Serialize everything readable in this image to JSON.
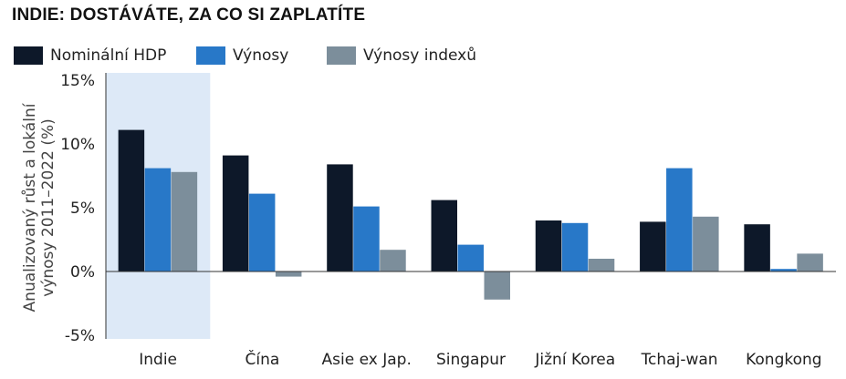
{
  "title": "INDIE: DOSTÁVÁTE, ZA CO SI ZAPLATÍTE",
  "colors": {
    "gdp": "#0d1829",
    "returns": "#2878c8",
    "index_returns": "#7c8e9b",
    "highlight": "#dde9f7"
  },
  "chart_data": {
    "type": "bar",
    "title": "INDIE: DOSTÁVÁTE, ZA CO SI ZAPLATÍTE",
    "ylabel_lines": [
      "Anualizovaný růst a lokální",
      "výnosy 2011–2022 (%)"
    ],
    "xlabel": "",
    "categories": [
      "Indie",
      "Čína",
      "Asie ex Jap.",
      "Singapur",
      "Jižní Korea",
      "Tchaj-wan",
      "Kongkong"
    ],
    "series": [
      {
        "name": "Nominální HDP",
        "values": [
          11.1,
          9.1,
          8.4,
          5.6,
          4.0,
          3.9,
          3.7
        ]
      },
      {
        "name": "Výnosy",
        "values": [
          8.1,
          6.1,
          5.1,
          2.1,
          3.8,
          8.1,
          0.2
        ]
      },
      {
        "name": "Výnosy indexů",
        "values": [
          7.8,
          -0.4,
          1.7,
          -2.2,
          1.0,
          4.3,
          1.4
        ]
      }
    ],
    "yticks": [
      "15%",
      "10%",
      "5%",
      "0%",
      "-5%"
    ],
    "ytick_values": [
      15,
      10,
      5,
      0,
      -5
    ],
    "ylim": [
      -5,
      15
    ],
    "highlight_category": "Indie",
    "legend_position": "top-left",
    "grid": false
  }
}
